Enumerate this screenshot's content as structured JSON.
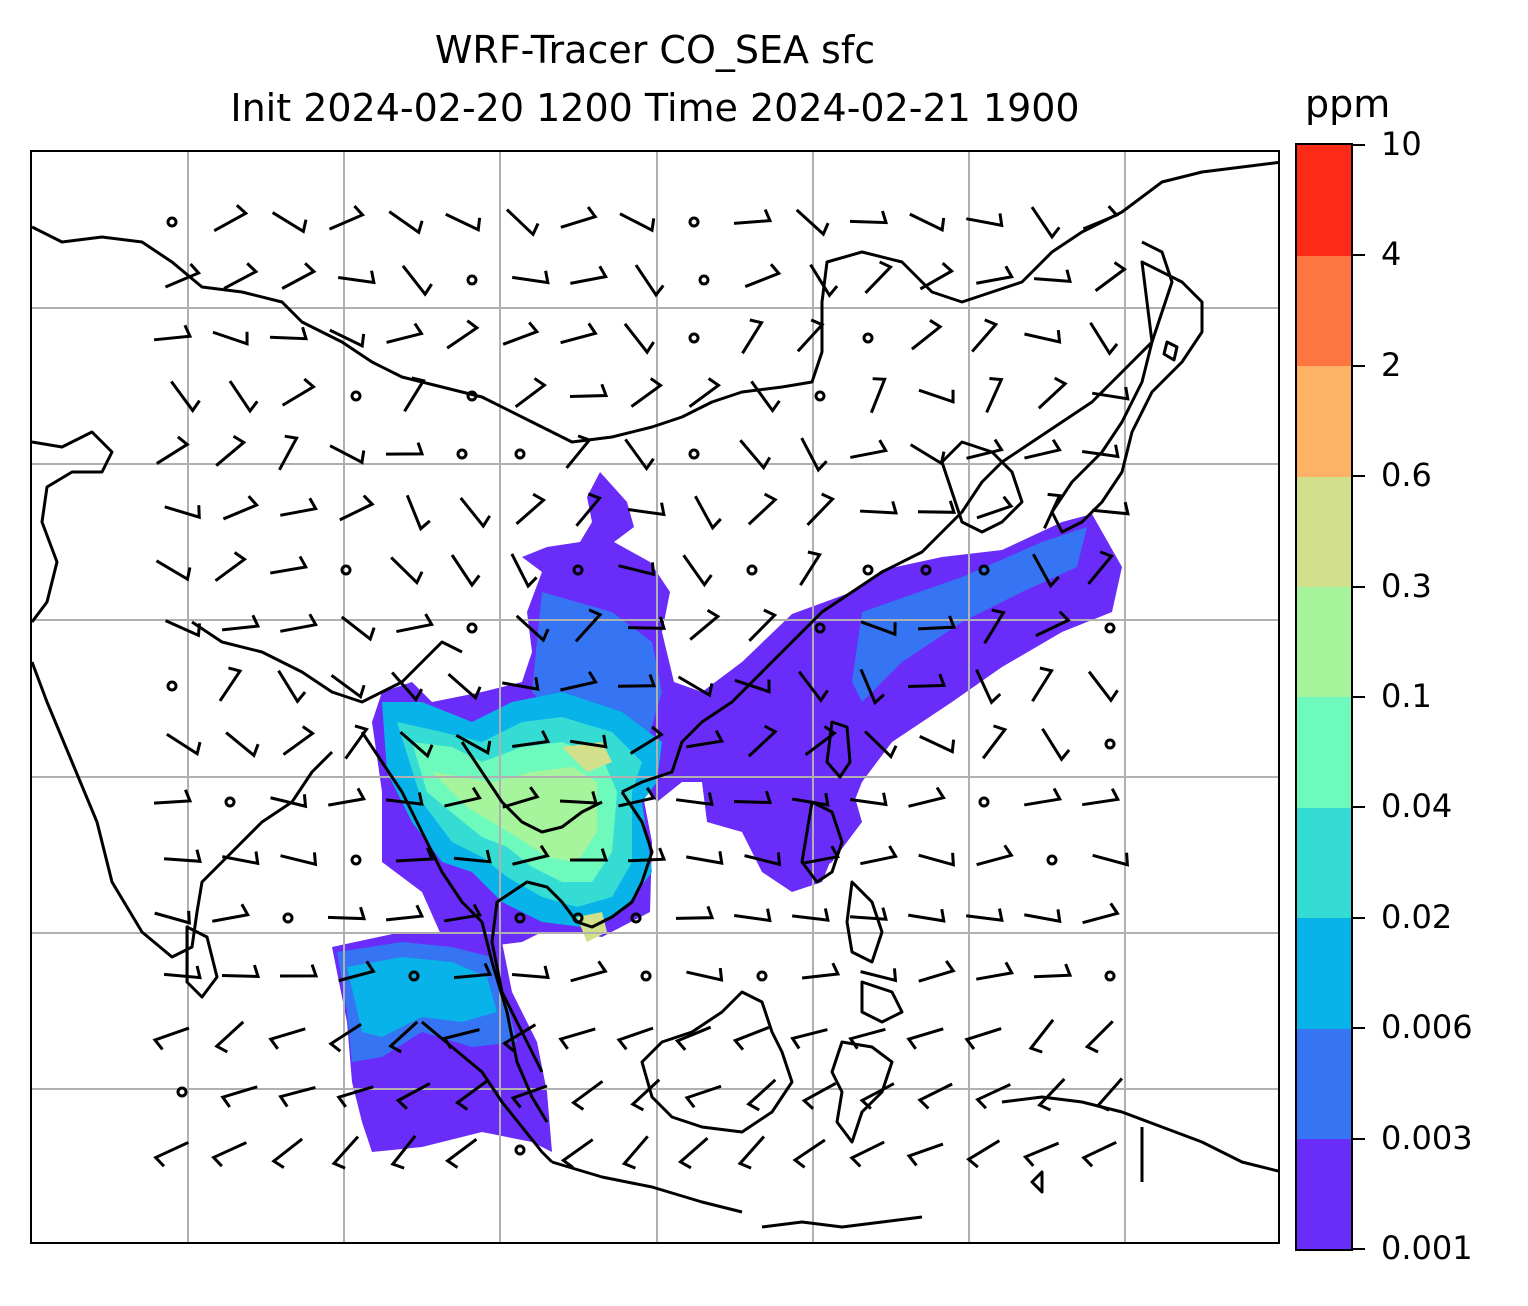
{
  "title": {
    "line1": "WRF-Tracer CO_SEA sfc",
    "line2": "Init 2024-02-20 1200 Time 2024-02-21 1900"
  },
  "colorbar": {
    "units": "ppm",
    "tick_labels": [
      "0.001",
      "0.003",
      "0.006",
      "0.02",
      "0.04",
      "0.1",
      "0.3",
      "0.6",
      "2",
      "4",
      "10"
    ],
    "colors": [
      "#6a2cf8",
      "#3574f2",
      "#07b3e8",
      "#35dcd4",
      "#6ef9bd",
      "#a6f59c",
      "#d2e08b",
      "#fdb266",
      "#fd7541",
      "#fc2b17"
    ]
  },
  "map": {
    "gridlines": true,
    "grid_color": "#b0b0b0",
    "coastline_color": "#000000",
    "features": [
      "coastlines",
      "country-borders",
      "tracer-concentration-shading",
      "wind-barbs"
    ]
  }
}
